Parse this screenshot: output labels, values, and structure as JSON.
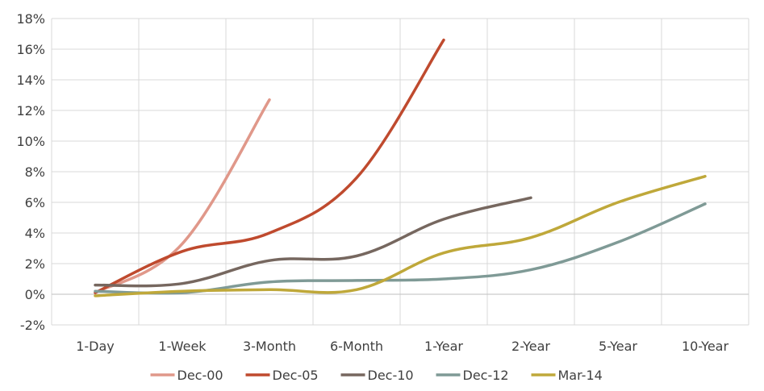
{
  "chart_data": {
    "type": "line",
    "title": "",
    "xlabel": "",
    "ylabel": "",
    "categories": [
      "1-Day",
      "1-Week",
      "3-Month",
      "6-Month",
      "1-Year",
      "2-Year",
      "5-Year",
      "10-Year"
    ],
    "ylim": [
      -2,
      18
    ],
    "yticks": [
      -2,
      0,
      2,
      4,
      6,
      8,
      10,
      12,
      14,
      16,
      18
    ],
    "ytick_labels": [
      "-2%",
      "0%",
      "2%",
      "4%",
      "6%",
      "8%",
      "10%",
      "12%",
      "14%",
      "16%",
      "18%"
    ],
    "grid": true,
    "legend_position": "bottom",
    "series": [
      {
        "name": "Dec-00",
        "color": "#e0988a",
        "values": [
          0.1,
          3.3,
          12.7,
          null,
          null,
          null,
          null,
          null
        ]
      },
      {
        "name": "Dec-05",
        "color": "#bf4a2e",
        "values": [
          0.1,
          2.8,
          4.0,
          7.6,
          16.6,
          null,
          null,
          null
        ]
      },
      {
        "name": "Dec-10",
        "color": "#76675f",
        "values": [
          0.6,
          0.7,
          2.2,
          2.5,
          4.9,
          6.3,
          null,
          null
        ]
      },
      {
        "name": "Dec-12",
        "color": "#7f9a96",
        "values": [
          0.2,
          0.1,
          0.8,
          0.9,
          1.0,
          1.6,
          3.4,
          5.9
        ]
      },
      {
        "name": "Mar-14",
        "color": "#bfa83a",
        "values": [
          -0.1,
          0.2,
          0.3,
          0.3,
          2.7,
          3.7,
          6.0,
          7.7
        ]
      }
    ]
  }
}
